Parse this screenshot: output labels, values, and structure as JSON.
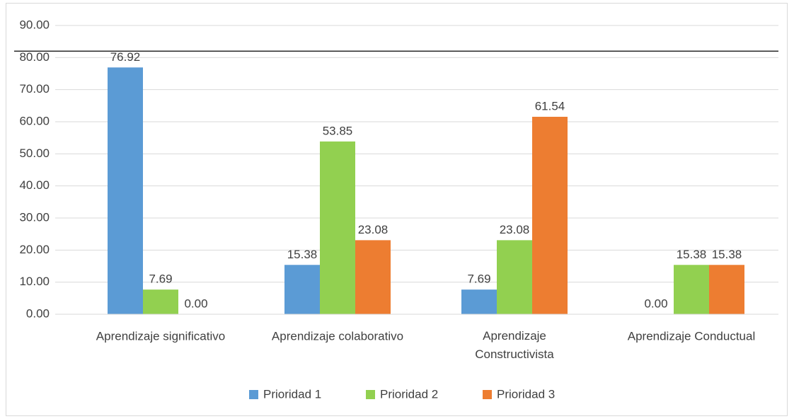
{
  "chart_data": {
    "type": "bar",
    "categories": [
      "Aprendizaje significativo",
      "Aprendizaje colaborativo",
      "Aprendizaje Constructivista",
      "Aprendizaje Conductual"
    ],
    "series": [
      {
        "name": "Prioridad 1",
        "color": "#5b9bd5",
        "values": [
          76.92,
          15.38,
          7.69,
          0
        ],
        "value_labels": [
          "76.92",
          "15.38",
          "7.69",
          "0.00"
        ]
      },
      {
        "name": "Prioridad 2",
        "color": "#92d050",
        "values": [
          7.69,
          53.85,
          23.08,
          15.38
        ],
        "value_labels": [
          "7.69",
          "53.85",
          "23.08",
          "15.38"
        ]
      },
      {
        "name": "Prioridad 3",
        "color": "#ed7d31",
        "values": [
          0,
          23.08,
          61.54,
          15.38
        ],
        "value_labels": [
          "0.00",
          "23.08",
          "61.54",
          "15.38"
        ]
      }
    ],
    "ylim": [
      0,
      90
    ],
    "yticks": [
      {
        "value": 0,
        "label": "0.00"
      },
      {
        "value": 10,
        "label": "10.00"
      },
      {
        "value": 20,
        "label": "20.00"
      },
      {
        "value": 30,
        "label": "30.00"
      },
      {
        "value": 40,
        "label": "40.00"
      },
      {
        "value": 50,
        "label": "50.00"
      },
      {
        "value": 60,
        "label": "60.00"
      },
      {
        "value": 70,
        "label": "70.00"
      },
      {
        "value": 80,
        "label": "80.00"
      },
      {
        "value": 90,
        "label": "90.00"
      }
    ],
    "reference_line": 82,
    "grid": true,
    "legend": "bottom"
  }
}
